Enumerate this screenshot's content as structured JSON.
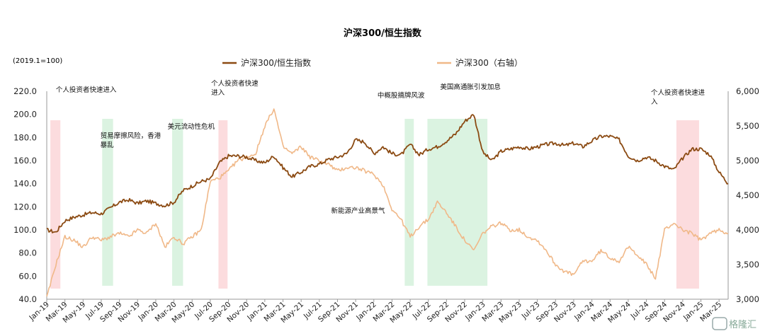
{
  "chart_data": {
    "type": "line",
    "title": "沪深300/恒生指数",
    "left_unit": "(2019.1=100)",
    "legend": [
      {
        "name": "沪深300/恒生指数",
        "color": "#8B4A12"
      },
      {
        "name": "沪深300（右轴）",
        "color": "#F0B888"
      }
    ],
    "left_axis": {
      "min": 40,
      "max": 220,
      "step": 20,
      "ticks": [
        "40.0",
        "60.0",
        "80.0",
        "100.0",
        "120.0",
        "140.0",
        "160.0",
        "180.0",
        "200.0",
        "220.0"
      ]
    },
    "right_axis": {
      "min": 3000,
      "max": 6000,
      "step": 500,
      "ticks": [
        "3,000",
        "3,500",
        "4,000",
        "4,500",
        "5,000",
        "5,500",
        "6,000"
      ]
    },
    "x_ticks": [
      "Jan-19",
      "Mar-19",
      "May-19",
      "Jul-19",
      "Sep-19",
      "Nov-19",
      "Jan-20",
      "Mar-20",
      "May-20",
      "Jul-20",
      "Sep-20",
      "Nov-20",
      "Jan-21",
      "Mar-21",
      "May-21",
      "Jul-21",
      "Sep-21",
      "Nov-21",
      "Jan-22",
      "Mar-22",
      "May-22",
      "Jul-22",
      "Sep-22",
      "Nov-22",
      "Jan-23",
      "Mar-23",
      "May-23",
      "Jul-23",
      "Sep-23",
      "Nov-23",
      "Jan-24",
      "Mar-24",
      "May-24",
      "Jul-24",
      "Sep-24",
      "Nov-24",
      "Jan-25",
      "Mar-25"
    ],
    "x_range_months": [
      0,
      75
    ],
    "bands": [
      {
        "from": 0.4,
        "to": 1.5,
        "color": "pink"
      },
      {
        "from": 6.1,
        "to": 7.3,
        "color": "green"
      },
      {
        "from": 13.8,
        "to": 15.0,
        "color": "green"
      },
      {
        "from": 18.9,
        "to": 19.9,
        "color": "pink"
      },
      {
        "from": 39.4,
        "to": 40.4,
        "color": "green"
      },
      {
        "from": 41.9,
        "to": 48.5,
        "color": "green"
      },
      {
        "from": 69.3,
        "to": 71.8,
        "color": "pink"
      }
    ],
    "annotations": [
      {
        "lines": [
          "个人投资者快速进入"
        ],
        "month": 1.0
      },
      {
        "lines": [
          "贸易摩擦风险，香港",
          "暴乱"
        ],
        "month": 5.9
      },
      {
        "lines": [
          "美元流动性危机"
        ],
        "month": 13.3
      },
      {
        "lines": [
          "个人投资者快速",
          "进入"
        ],
        "month": 18.1
      },
      {
        "lines": [
          "中概股摘牌风波"
        ],
        "month": 36.4
      },
      {
        "lines": [
          "美国高通胀引发加息"
        ],
        "month": 43.3
      },
      {
        "lines": [
          "新能源产业高景气"
        ],
        "month": 31.3
      },
      {
        "lines": [
          "个人投资者快速进",
          "入"
        ],
        "month": 66.5
      }
    ],
    "series": [
      {
        "name": "沪深300/恒生指数",
        "axis": "left",
        "color": "#8B4A12",
        "points": [
          [
            0,
            100
          ],
          [
            1,
            98
          ],
          [
            2,
            108
          ],
          [
            3,
            111
          ],
          [
            4,
            113
          ],
          [
            5,
            115
          ],
          [
            6,
            114
          ],
          [
            7,
            119
          ],
          [
            8,
            124
          ],
          [
            9,
            126
          ],
          [
            10,
            123
          ],
          [
            11,
            125
          ],
          [
            12,
            123
          ],
          [
            13,
            121
          ],
          [
            14,
            124
          ],
          [
            15,
            134
          ],
          [
            16,
            138
          ],
          [
            17,
            142
          ],
          [
            18,
            144
          ],
          [
            19,
            158
          ],
          [
            20,
            164
          ],
          [
            21,
            164
          ],
          [
            22,
            163
          ],
          [
            23,
            160
          ],
          [
            24,
            158
          ],
          [
            25,
            164
          ],
          [
            26,
            154
          ],
          [
            27,
            146
          ],
          [
            28,
            150
          ],
          [
            29,
            155
          ],
          [
            30,
            157
          ],
          [
            31,
            161
          ],
          [
            32,
            163
          ],
          [
            33,
            166
          ],
          [
            34,
            178
          ],
          [
            35,
            176
          ],
          [
            36,
            166
          ],
          [
            37,
            172
          ],
          [
            38,
            166
          ],
          [
            39,
            165
          ],
          [
            40,
            174
          ],
          [
            41,
            165
          ],
          [
            42,
            170
          ],
          [
            43,
            172
          ],
          [
            44,
            177
          ],
          [
            45,
            183
          ],
          [
            46,
            194
          ],
          [
            47,
            200
          ],
          [
            48,
            167
          ],
          [
            49,
            160
          ],
          [
            50,
            168
          ],
          [
            51,
            170
          ],
          [
            52,
            172
          ],
          [
            53,
            170
          ],
          [
            54,
            172
          ],
          [
            55,
            174
          ],
          [
            56,
            175
          ],
          [
            57,
            173
          ],
          [
            58,
            175
          ],
          [
            59,
            172
          ],
          [
            60,
            177
          ],
          [
            61,
            181
          ],
          [
            62,
            181
          ],
          [
            63,
            178
          ],
          [
            64,
            164
          ],
          [
            65,
            160
          ],
          [
            66,
            163
          ],
          [
            67,
            160
          ],
          [
            68,
            155
          ],
          [
            69,
            152
          ],
          [
            70,
            162
          ],
          [
            71,
            170
          ],
          [
            72,
            170
          ],
          [
            73,
            165
          ],
          [
            74,
            150
          ],
          [
            75,
            140
          ]
        ]
      },
      {
        "name": "沪深300（右轴）",
        "axis": "right",
        "color": "#F0B888",
        "points": [
          [
            0,
            3020
          ],
          [
            1,
            3500
          ],
          [
            2,
            3900
          ],
          [
            3,
            3850
          ],
          [
            4,
            3750
          ],
          [
            5,
            3900
          ],
          [
            6,
            3850
          ],
          [
            7,
            3900
          ],
          [
            8,
            3950
          ],
          [
            9,
            3900
          ],
          [
            10,
            4000
          ],
          [
            11,
            3950
          ],
          [
            12,
            4100
          ],
          [
            13,
            3750
          ],
          [
            14,
            3900
          ],
          [
            15,
            3800
          ],
          [
            16,
            3900
          ],
          [
            17,
            4000
          ],
          [
            18,
            4700
          ],
          [
            19,
            4750
          ],
          [
            20,
            4850
          ],
          [
            21,
            5000
          ],
          [
            22,
            5050
          ],
          [
            23,
            5100
          ],
          [
            24,
            5500
          ],
          [
            25,
            5750
          ],
          [
            26,
            5200
          ],
          [
            27,
            5100
          ],
          [
            28,
            5200
          ],
          [
            29,
            5050
          ],
          [
            30,
            5000
          ],
          [
            31,
            4950
          ],
          [
            32,
            4850
          ],
          [
            33,
            4900
          ],
          [
            34,
            4900
          ],
          [
            35,
            4850
          ],
          [
            36,
            4800
          ],
          [
            37,
            4650
          ],
          [
            38,
            4300
          ],
          [
            39,
            4150
          ],
          [
            40,
            3900
          ],
          [
            41,
            4050
          ],
          [
            42,
            4150
          ],
          [
            43,
            4400
          ],
          [
            44,
            4250
          ],
          [
            45,
            4050
          ],
          [
            46,
            3850
          ],
          [
            47,
            3700
          ],
          [
            48,
            3950
          ],
          [
            49,
            4050
          ],
          [
            50,
            4100
          ],
          [
            51,
            4000
          ],
          [
            52,
            4000
          ],
          [
            53,
            3900
          ],
          [
            54,
            3850
          ],
          [
            55,
            3700
          ],
          [
            56,
            3500
          ],
          [
            57,
            3400
          ],
          [
            58,
            3350
          ],
          [
            59,
            3550
          ],
          [
            60,
            3550
          ],
          [
            61,
            3700
          ],
          [
            62,
            3600
          ],
          [
            63,
            3550
          ],
          [
            64,
            3750
          ],
          [
            65,
            3650
          ],
          [
            66,
            3500
          ],
          [
            67,
            3300
          ],
          [
            68,
            4000
          ],
          [
            69,
            4100
          ],
          [
            70,
            4000
          ],
          [
            71,
            3950
          ],
          [
            72,
            3850
          ],
          [
            73,
            3950
          ],
          [
            74,
            4000
          ],
          [
            75,
            3950
          ]
        ]
      }
    ]
  },
  "watermark": "格隆汇"
}
